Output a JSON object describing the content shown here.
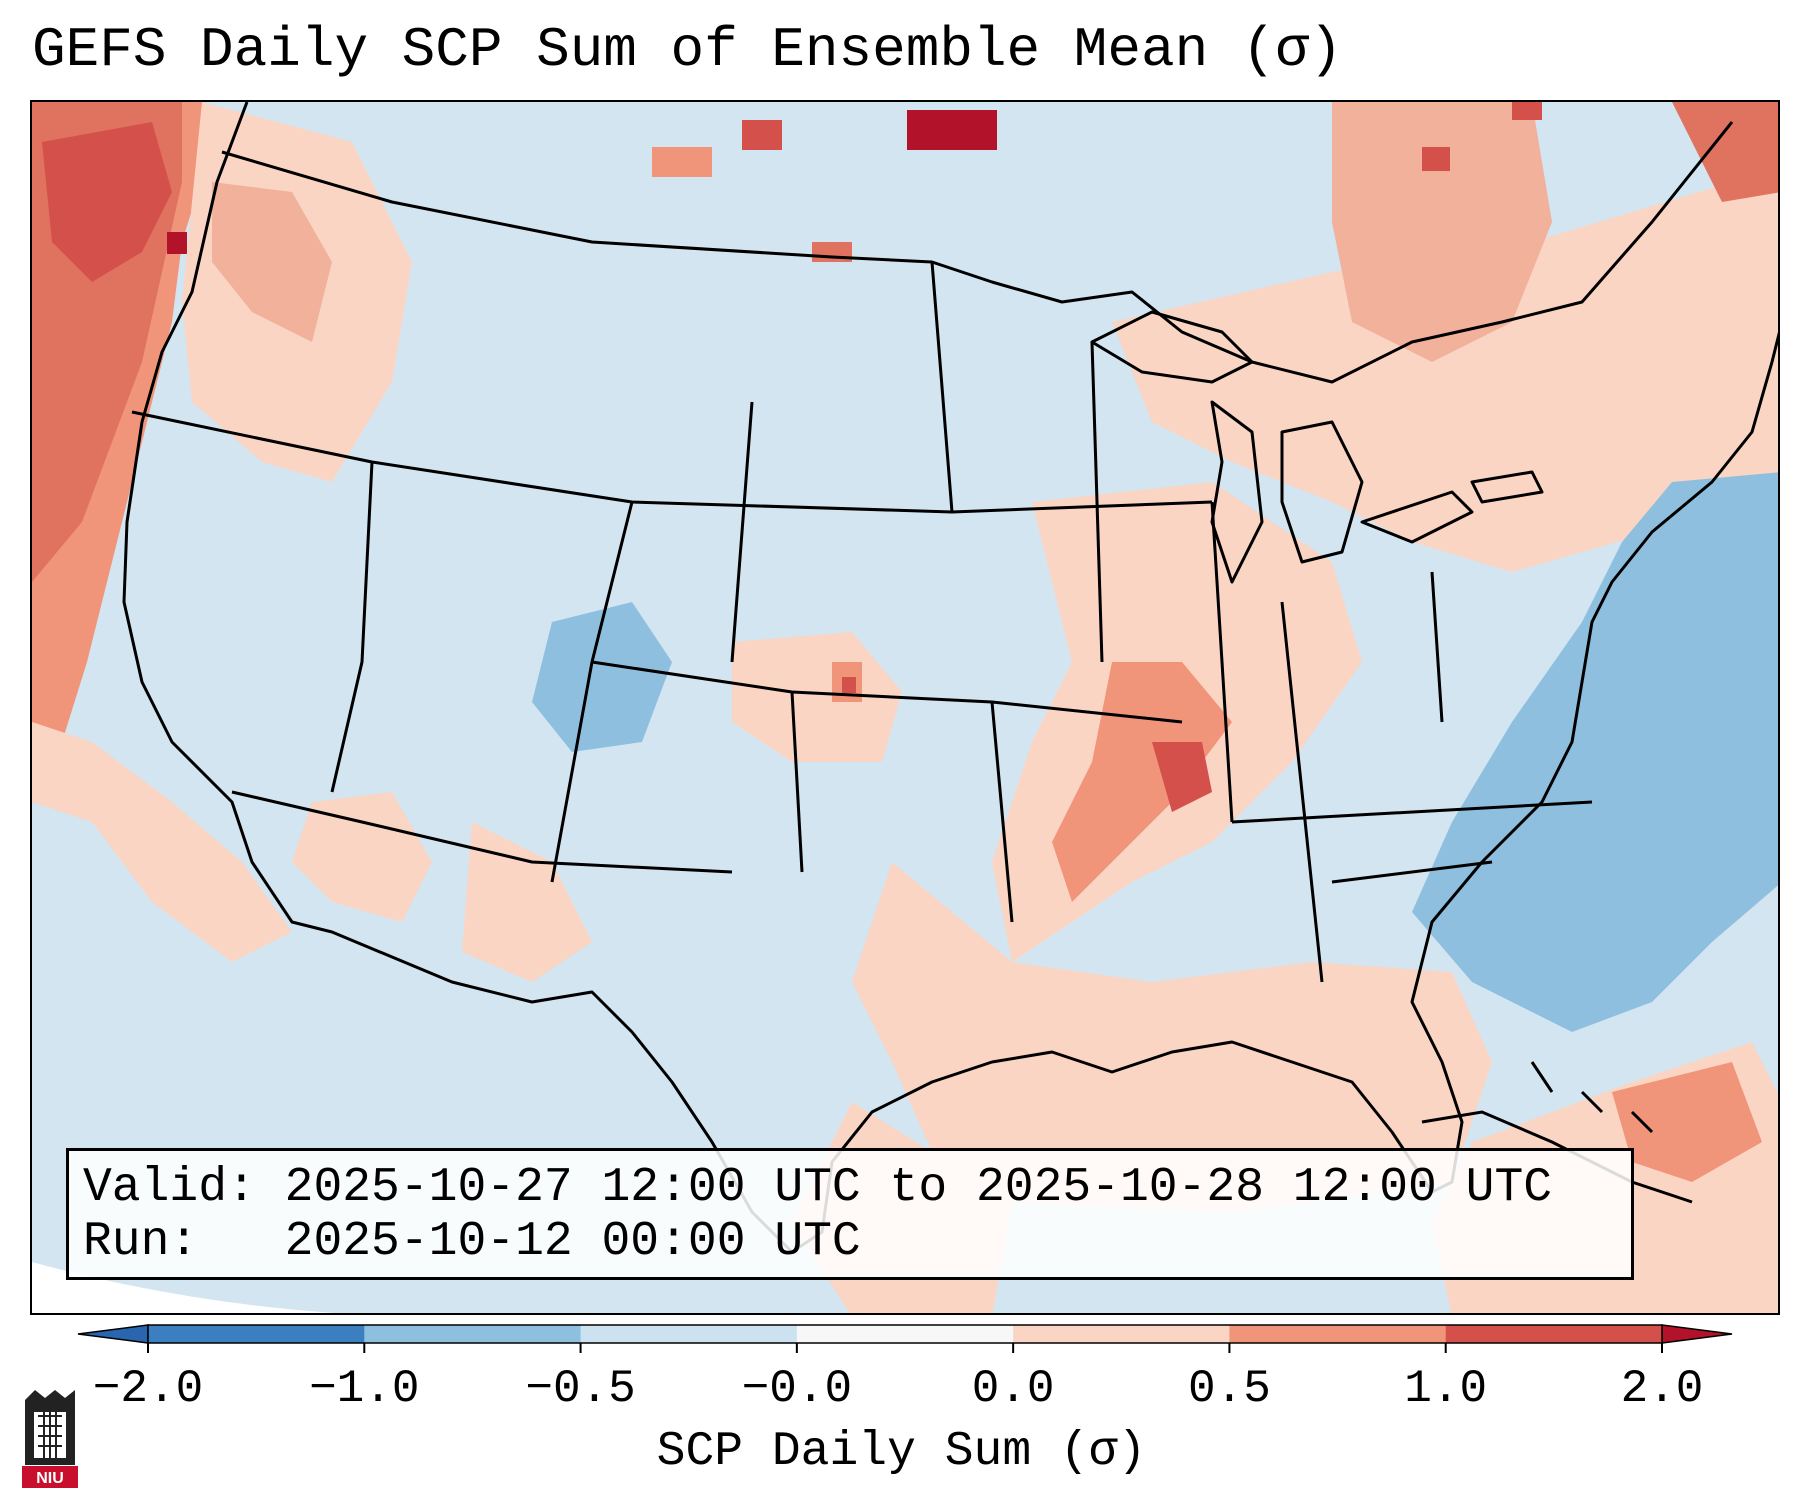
{
  "title": "GEFS Daily SCP Sum of Ensemble Mean (σ)",
  "info": {
    "valid_label": "Valid:",
    "valid_value": "2025-10-27 12:00 UTC to 2025-10-28 12:00 UTC",
    "run_label": "Run:",
    "run_value": "2025-10-12 00:00 UTC"
  },
  "colorbar": {
    "label": "SCP Daily Sum (σ)",
    "tick_labels": [
      "−2.0",
      "−1.0",
      "−0.5",
      "−0.0",
      "0.0",
      "0.5",
      "1.0",
      "2.0"
    ],
    "bin_colors": [
      "#3b7fc0",
      "#8fbfdf",
      "#cde2f0",
      "#f7f7f7",
      "#fbd5c4",
      "#f1957a",
      "#d4504a"
    ],
    "extend_min_color": "#2a66b0",
    "extend_max_color": "#b3132a"
  },
  "legend_colors": {
    "background_ocean": "#d2e5f1",
    "land_neutral": "#d2e5f1",
    "positive_light": "#fbd5c4",
    "positive_mid": "#f1957a",
    "positive_high": "#d4504a",
    "positive_max": "#b3132a",
    "negative_mid": "#8fbfdf"
  },
  "logo_text": "NIU"
}
